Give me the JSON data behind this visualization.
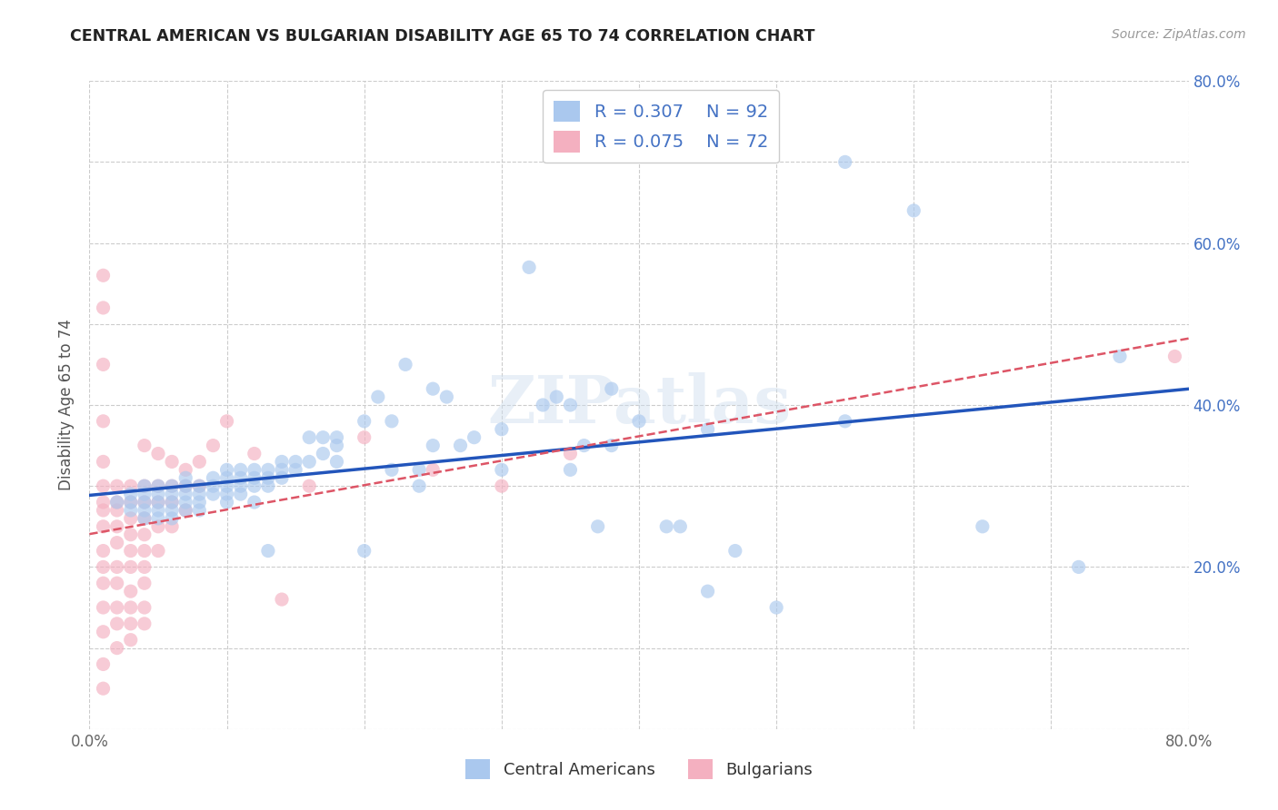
{
  "title": "CENTRAL AMERICAN VS BULGARIAN DISABILITY AGE 65 TO 74 CORRELATION CHART",
  "source": "Source: ZipAtlas.com",
  "xlabel": "",
  "ylabel": "Disability Age 65 to 74",
  "xlim": [
    0.0,
    0.8
  ],
  "ylim": [
    0.0,
    0.8
  ],
  "ca_R": 0.307,
  "ca_N": 92,
  "bg_R": 0.075,
  "bg_N": 72,
  "ca_scatter": [
    [
      0.02,
      0.28
    ],
    [
      0.03,
      0.27
    ],
    [
      0.03,
      0.29
    ],
    [
      0.03,
      0.28
    ],
    [
      0.04,
      0.29
    ],
    [
      0.04,
      0.28
    ],
    [
      0.04,
      0.27
    ],
    [
      0.04,
      0.26
    ],
    [
      0.04,
      0.3
    ],
    [
      0.05,
      0.28
    ],
    [
      0.05,
      0.27
    ],
    [
      0.05,
      0.29
    ],
    [
      0.05,
      0.26
    ],
    [
      0.05,
      0.3
    ],
    [
      0.06,
      0.28
    ],
    [
      0.06,
      0.27
    ],
    [
      0.06,
      0.29
    ],
    [
      0.06,
      0.26
    ],
    [
      0.06,
      0.3
    ],
    [
      0.07,
      0.28
    ],
    [
      0.07,
      0.29
    ],
    [
      0.07,
      0.3
    ],
    [
      0.07,
      0.27
    ],
    [
      0.07,
      0.31
    ],
    [
      0.08,
      0.29
    ],
    [
      0.08,
      0.3
    ],
    [
      0.08,
      0.28
    ],
    [
      0.08,
      0.27
    ],
    [
      0.09,
      0.3
    ],
    [
      0.09,
      0.31
    ],
    [
      0.09,
      0.29
    ],
    [
      0.1,
      0.29
    ],
    [
      0.1,
      0.3
    ],
    [
      0.1,
      0.31
    ],
    [
      0.1,
      0.28
    ],
    [
      0.1,
      0.32
    ],
    [
      0.11,
      0.3
    ],
    [
      0.11,
      0.31
    ],
    [
      0.11,
      0.32
    ],
    [
      0.11,
      0.29
    ],
    [
      0.12,
      0.3
    ],
    [
      0.12,
      0.31
    ],
    [
      0.12,
      0.32
    ],
    [
      0.12,
      0.28
    ],
    [
      0.13,
      0.31
    ],
    [
      0.13,
      0.3
    ],
    [
      0.13,
      0.32
    ],
    [
      0.13,
      0.22
    ],
    [
      0.14,
      0.33
    ],
    [
      0.14,
      0.32
    ],
    [
      0.14,
      0.31
    ],
    [
      0.15,
      0.33
    ],
    [
      0.15,
      0.32
    ],
    [
      0.16,
      0.36
    ],
    [
      0.16,
      0.33
    ],
    [
      0.17,
      0.36
    ],
    [
      0.17,
      0.34
    ],
    [
      0.18,
      0.35
    ],
    [
      0.18,
      0.33
    ],
    [
      0.18,
      0.36
    ],
    [
      0.2,
      0.38
    ],
    [
      0.2,
      0.22
    ],
    [
      0.21,
      0.41
    ],
    [
      0.22,
      0.38
    ],
    [
      0.22,
      0.32
    ],
    [
      0.23,
      0.45
    ],
    [
      0.24,
      0.3
    ],
    [
      0.24,
      0.32
    ],
    [
      0.25,
      0.42
    ],
    [
      0.25,
      0.35
    ],
    [
      0.26,
      0.41
    ],
    [
      0.27,
      0.35
    ],
    [
      0.28,
      0.36
    ],
    [
      0.3,
      0.37
    ],
    [
      0.3,
      0.32
    ],
    [
      0.32,
      0.57
    ],
    [
      0.33,
      0.4
    ],
    [
      0.34,
      0.41
    ],
    [
      0.35,
      0.4
    ],
    [
      0.35,
      0.32
    ],
    [
      0.36,
      0.35
    ],
    [
      0.37,
      0.25
    ],
    [
      0.38,
      0.42
    ],
    [
      0.38,
      0.35
    ],
    [
      0.4,
      0.38
    ],
    [
      0.42,
      0.25
    ],
    [
      0.43,
      0.25
    ],
    [
      0.45,
      0.37
    ],
    [
      0.45,
      0.17
    ],
    [
      0.47,
      0.22
    ],
    [
      0.5,
      0.15
    ],
    [
      0.55,
      0.7
    ],
    [
      0.55,
      0.38
    ],
    [
      0.6,
      0.64
    ],
    [
      0.65,
      0.25
    ],
    [
      0.72,
      0.2
    ],
    [
      0.75,
      0.46
    ]
  ],
  "bg_scatter": [
    [
      0.01,
      0.56
    ],
    [
      0.01,
      0.52
    ],
    [
      0.01,
      0.45
    ],
    [
      0.01,
      0.38
    ],
    [
      0.01,
      0.33
    ],
    [
      0.01,
      0.3
    ],
    [
      0.01,
      0.28
    ],
    [
      0.01,
      0.27
    ],
    [
      0.01,
      0.25
    ],
    [
      0.01,
      0.22
    ],
    [
      0.01,
      0.2
    ],
    [
      0.01,
      0.18
    ],
    [
      0.01,
      0.15
    ],
    [
      0.01,
      0.12
    ],
    [
      0.01,
      0.08
    ],
    [
      0.01,
      0.05
    ],
    [
      0.02,
      0.3
    ],
    [
      0.02,
      0.28
    ],
    [
      0.02,
      0.27
    ],
    [
      0.02,
      0.25
    ],
    [
      0.02,
      0.23
    ],
    [
      0.02,
      0.2
    ],
    [
      0.02,
      0.18
    ],
    [
      0.02,
      0.15
    ],
    [
      0.02,
      0.13
    ],
    [
      0.02,
      0.1
    ],
    [
      0.03,
      0.3
    ],
    [
      0.03,
      0.28
    ],
    [
      0.03,
      0.26
    ],
    [
      0.03,
      0.24
    ],
    [
      0.03,
      0.22
    ],
    [
      0.03,
      0.2
    ],
    [
      0.03,
      0.17
    ],
    [
      0.03,
      0.15
    ],
    [
      0.03,
      0.13
    ],
    [
      0.03,
      0.11
    ],
    [
      0.04,
      0.35
    ],
    [
      0.04,
      0.3
    ],
    [
      0.04,
      0.28
    ],
    [
      0.04,
      0.26
    ],
    [
      0.04,
      0.24
    ],
    [
      0.04,
      0.22
    ],
    [
      0.04,
      0.2
    ],
    [
      0.04,
      0.18
    ],
    [
      0.04,
      0.15
    ],
    [
      0.04,
      0.13
    ],
    [
      0.05,
      0.34
    ],
    [
      0.05,
      0.3
    ],
    [
      0.05,
      0.28
    ],
    [
      0.05,
      0.25
    ],
    [
      0.05,
      0.22
    ],
    [
      0.06,
      0.33
    ],
    [
      0.06,
      0.3
    ],
    [
      0.06,
      0.28
    ],
    [
      0.06,
      0.25
    ],
    [
      0.07,
      0.32
    ],
    [
      0.07,
      0.3
    ],
    [
      0.07,
      0.27
    ],
    [
      0.08,
      0.33
    ],
    [
      0.08,
      0.3
    ],
    [
      0.09,
      0.35
    ],
    [
      0.1,
      0.38
    ],
    [
      0.12,
      0.34
    ],
    [
      0.14,
      0.16
    ],
    [
      0.16,
      0.3
    ],
    [
      0.2,
      0.36
    ],
    [
      0.25,
      0.32
    ],
    [
      0.3,
      0.3
    ],
    [
      0.35,
      0.34
    ],
    [
      0.79,
      0.46
    ]
  ],
  "ca_marker_color": "#aac8ee",
  "bg_marker_color": "#f4b0c0",
  "trendline_ca_color": "#2255bb",
  "trendline_bg_color": "#dd5566",
  "watermark": "ZIPatlas",
  "legend_color": "#4472c4"
}
